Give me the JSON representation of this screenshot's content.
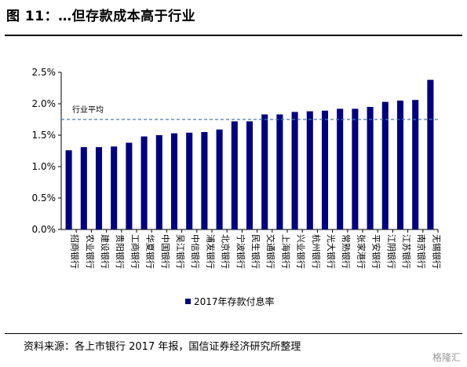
{
  "title": "图 11：…但存款成本高于行业",
  "source": "资料来源：各上市银行 2017 年报，国信证券经济研究所整理",
  "watermark": "格隆汇",
  "colors": {
    "bar": "#000080",
    "reference_line": "#4a78b8"
  },
  "chart_data": {
    "type": "bar",
    "categories": [
      "招商银行",
      "农业银行",
      "建设银行",
      "贵阳银行",
      "工商银行",
      "华夏银行",
      "中国银行",
      "吴江银行",
      "中信银行",
      "浦发银行",
      "北京银行",
      "宁波银行",
      "民生银行",
      "交通银行",
      "上海银行",
      "兴业银行",
      "杭州银行",
      "光大银行",
      "常熟银行",
      "张家港行",
      "平安银行",
      "江阴银行",
      "江苏银行",
      "南京银行",
      "无锡银行"
    ],
    "series": [
      {
        "name": "2017年存款付息率",
        "values": [
          1.26,
          1.31,
          1.31,
          1.32,
          1.38,
          1.48,
          1.5,
          1.53,
          1.54,
          1.55,
          1.59,
          1.72,
          1.72,
          1.83,
          1.83,
          1.87,
          1.88,
          1.89,
          1.92,
          1.92,
          1.95,
          2.03,
          2.05,
          2.06,
          2.38
        ]
      }
    ],
    "reference_line": {
      "label": "行业平均",
      "value": 1.75
    },
    "ylim": [
      0,
      2.5
    ],
    "yticks": [
      "0.0%",
      "0.5%",
      "1.0%",
      "1.5%",
      "2.0%",
      "2.5%"
    ],
    "grid": false,
    "legend_position": "bottom"
  }
}
